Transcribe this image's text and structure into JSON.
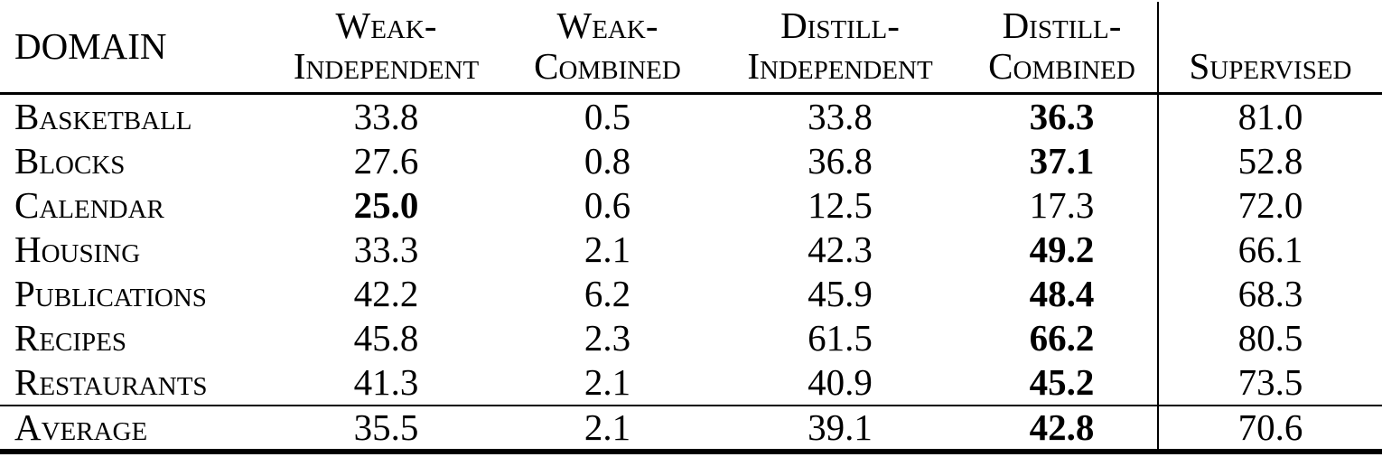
{
  "colors": {
    "text": "#000000",
    "background": "#ffffff",
    "rule": "#000000"
  },
  "table": {
    "columns": [
      {
        "id": "domain",
        "line1": "DOMAIN",
        "line2": ""
      },
      {
        "id": "weak-independent",
        "line1": "Weak-",
        "line2": "Independent"
      },
      {
        "id": "weak-combined",
        "line1": "Weak-",
        "line2": "Combined"
      },
      {
        "id": "distill-independent",
        "line1": "Distill-",
        "line2": "Independent"
      },
      {
        "id": "distill-combined",
        "line1": "Distill-",
        "line2": "Combined"
      },
      {
        "id": "supervised",
        "line1": "",
        "line2": "Supervised"
      }
    ],
    "rows": [
      {
        "domain": "Basketball",
        "cells": [
          {
            "v": "33.8",
            "bold": false
          },
          {
            "v": "0.5",
            "bold": false
          },
          {
            "v": "33.8",
            "bold": false
          },
          {
            "v": "36.3",
            "bold": true
          },
          {
            "v": "81.0",
            "bold": false
          }
        ]
      },
      {
        "domain": "Blocks",
        "cells": [
          {
            "v": "27.6",
            "bold": false
          },
          {
            "v": "0.8",
            "bold": false
          },
          {
            "v": "36.8",
            "bold": false
          },
          {
            "v": "37.1",
            "bold": true
          },
          {
            "v": "52.8",
            "bold": false
          }
        ]
      },
      {
        "domain": "Calendar",
        "cells": [
          {
            "v": "25.0",
            "bold": true
          },
          {
            "v": "0.6",
            "bold": false
          },
          {
            "v": "12.5",
            "bold": false
          },
          {
            "v": "17.3",
            "bold": false
          },
          {
            "v": "72.0",
            "bold": false
          }
        ]
      },
      {
        "domain": "Housing",
        "cells": [
          {
            "v": "33.3",
            "bold": false
          },
          {
            "v": "2.1",
            "bold": false
          },
          {
            "v": "42.3",
            "bold": false
          },
          {
            "v": "49.2",
            "bold": true
          },
          {
            "v": "66.1",
            "bold": false
          }
        ]
      },
      {
        "domain": "Publications",
        "cells": [
          {
            "v": "42.2",
            "bold": false
          },
          {
            "v": "6.2",
            "bold": false
          },
          {
            "v": "45.9",
            "bold": false
          },
          {
            "v": "48.4",
            "bold": true
          },
          {
            "v": "68.3",
            "bold": false
          }
        ]
      },
      {
        "domain": "Recipes",
        "cells": [
          {
            "v": "45.8",
            "bold": false
          },
          {
            "v": "2.3",
            "bold": false
          },
          {
            "v": "61.5",
            "bold": false
          },
          {
            "v": "66.2",
            "bold": true
          },
          {
            "v": "80.5",
            "bold": false
          }
        ]
      },
      {
        "domain": "Restaurants",
        "cells": [
          {
            "v": "41.3",
            "bold": false
          },
          {
            "v": "2.1",
            "bold": false
          },
          {
            "v": "40.9",
            "bold": false
          },
          {
            "v": "45.2",
            "bold": true
          },
          {
            "v": "73.5",
            "bold": false
          }
        ]
      }
    ],
    "average": {
      "domain": "Average",
      "cells": [
        {
          "v": "35.5",
          "bold": false
        },
        {
          "v": "2.1",
          "bold": false
        },
        {
          "v": "39.1",
          "bold": false
        },
        {
          "v": "42.8",
          "bold": true
        },
        {
          "v": "70.6",
          "bold": false
        }
      ]
    }
  }
}
